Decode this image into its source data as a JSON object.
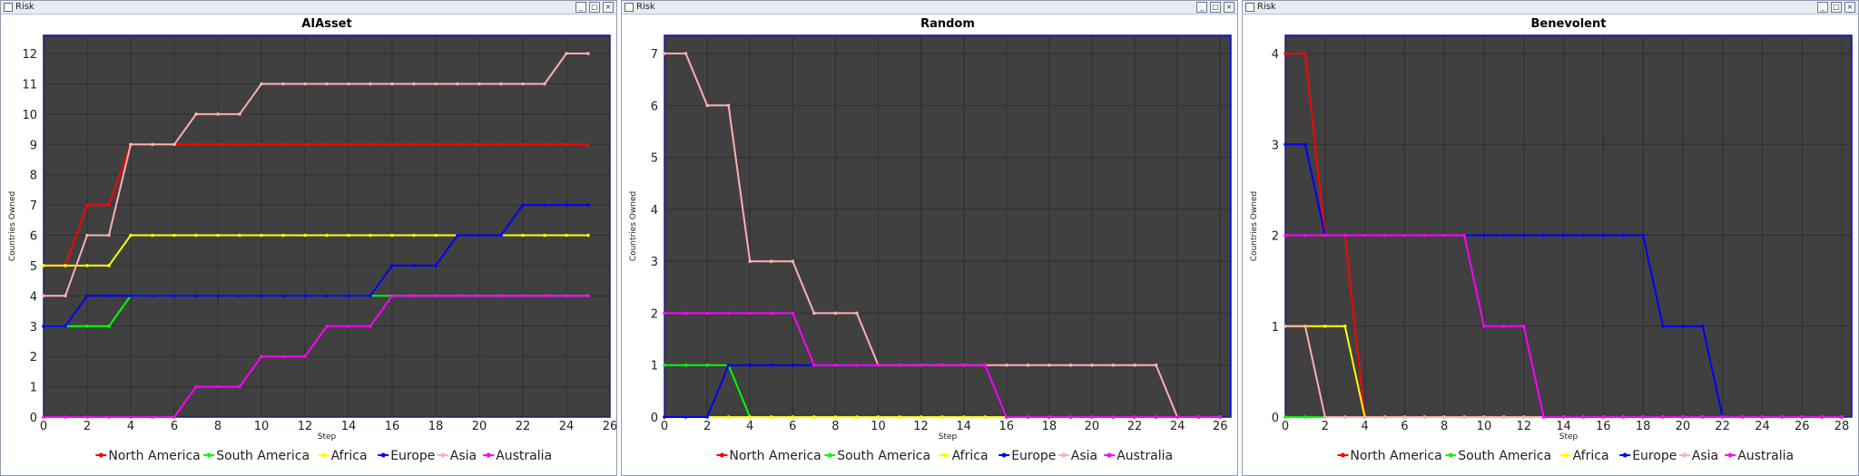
{
  "windows": [
    {
      "title": "Risk",
      "controls": [
        "minimize-icon",
        "restore-icon",
        "close-icon"
      ]
    },
    {
      "title": "Risk",
      "controls": [
        "minimize-icon",
        "restore-icon",
        "close-icon"
      ]
    },
    {
      "title": "Risk",
      "controls": [
        "minimize-icon",
        "restore-icon",
        "close-icon"
      ]
    }
  ],
  "chart_data": [
    {
      "type": "line",
      "title": "AIAsset",
      "xlabel": "Step",
      "ylabel": "Countries Owned",
      "xlim": [
        0,
        26
      ],
      "ylim": [
        0,
        12.6
      ],
      "xticks": [
        0,
        2,
        4,
        6,
        8,
        10,
        12,
        14,
        16,
        18,
        20,
        22,
        24,
        26
      ],
      "yticks": [
        0,
        1,
        2,
        3,
        4,
        5,
        6,
        7,
        8,
        9,
        10,
        11,
        12
      ],
      "grid": true,
      "legend": "bottom",
      "x": [
        0,
        1,
        2,
        3,
        4,
        5,
        6,
        7,
        8,
        9,
        10,
        11,
        12,
        13,
        14,
        15,
        16,
        17,
        18,
        19,
        20,
        21,
        22,
        23,
        24,
        25
      ],
      "series": [
        {
          "name": "North America",
          "color": "#ff0000",
          "values": [
            5,
            5,
            7,
            7,
            9,
            9,
            9,
            9,
            9,
            9,
            9,
            9,
            9,
            9,
            9,
            9,
            9,
            9,
            9,
            9,
            9,
            9,
            9,
            9,
            9,
            9
          ]
        },
        {
          "name": "South  America",
          "color": "#00ff00",
          "values": [
            3,
            3,
            3,
            3,
            4,
            4,
            4,
            4,
            4,
            4,
            4,
            4,
            4,
            4,
            4,
            4,
            4,
            4,
            4,
            4,
            4,
            4,
            4,
            4,
            4,
            4
          ]
        },
        {
          "name": "Africa",
          "color": "#ffff00",
          "values": [
            5,
            5,
            5,
            5,
            6,
            6,
            6,
            6,
            6,
            6,
            6,
            6,
            6,
            6,
            6,
            6,
            6,
            6,
            6,
            6,
            6,
            6,
            6,
            6,
            6,
            6
          ]
        },
        {
          "name": "Europe",
          "color": "#0000ff",
          "values": [
            3,
            3,
            4,
            4,
            4,
            4,
            4,
            4,
            4,
            4,
            4,
            4,
            4,
            4,
            4,
            4,
            5,
            5,
            5,
            6,
            6,
            6,
            7,
            7,
            7,
            7
          ]
        },
        {
          "name": "Asia",
          "color": "#ffafaf",
          "values": [
            4,
            4,
            6,
            6,
            9,
            9,
            9,
            10,
            10,
            10,
            11,
            11,
            11,
            11,
            11,
            11,
            11,
            11,
            11,
            11,
            11,
            11,
            11,
            11,
            12,
            12
          ]
        },
        {
          "name": "Australia",
          "color": "#ff00ff",
          "values": [
            0,
            0,
            0,
            0,
            0,
            0,
            0,
            1,
            1,
            1,
            2,
            2,
            2,
            3,
            3,
            3,
            4,
            4,
            4,
            4,
            4,
            4,
            4,
            4,
            4,
            4
          ]
        }
      ]
    },
    {
      "type": "line",
      "title": "Random",
      "xlabel": "Step",
      "ylabel": "Countries Owned",
      "xlim": [
        0,
        26.5
      ],
      "ylim": [
        0,
        7.35
      ],
      "xticks": [
        0,
        2,
        4,
        6,
        8,
        10,
        12,
        14,
        16,
        18,
        20,
        22,
        24,
        26
      ],
      "yticks": [
        0,
        1,
        2,
        3,
        4,
        5,
        6,
        7
      ],
      "grid": true,
      "legend": "bottom",
      "x": [
        0,
        1,
        2,
        3,
        4,
        5,
        6,
        7,
        8,
        9,
        10,
        11,
        12,
        13,
        14,
        15,
        16,
        17,
        18,
        19,
        20,
        21,
        22,
        23,
        24,
        25,
        26
      ],
      "series": [
        {
          "name": "North America",
          "color": "#ff0000",
          "values": [
            0,
            0,
            0,
            0,
            0,
            0,
            0,
            0,
            0,
            0,
            0,
            0,
            0,
            0,
            0,
            0,
            0,
            0,
            0,
            0,
            0,
            0,
            0,
            0,
            0,
            0,
            0
          ]
        },
        {
          "name": "South  America",
          "color": "#00ff00",
          "values": [
            1,
            1,
            1,
            1,
            0,
            0,
            0,
            0,
            0,
            0,
            0,
            0,
            0,
            0,
            0,
            0,
            0,
            0,
            0,
            0,
            0,
            0,
            0,
            0,
            0,
            0,
            0
          ]
        },
        {
          "name": "Africa",
          "color": "#ffff00",
          "values": [
            0,
            0,
            0,
            0,
            0,
            0,
            0,
            0,
            0,
            0,
            0,
            0,
            0,
            0,
            0,
            0,
            0,
            0,
            0,
            0,
            0,
            0,
            0,
            0,
            0,
            0,
            0
          ]
        },
        {
          "name": "Europe",
          "color": "#0000ff",
          "values": [
            0,
            0,
            0,
            1,
            1,
            1,
            1,
            1,
            1,
            1,
            1,
            1,
            1,
            1,
            1,
            1,
            0,
            0,
            0,
            0,
            0,
            0,
            0,
            0,
            0,
            0,
            0
          ]
        },
        {
          "name": "Asia",
          "color": "#ffafaf",
          "values": [
            7,
            7,
            6,
            6,
            3,
            3,
            3,
            2,
            2,
            2,
            1,
            1,
            1,
            1,
            1,
            1,
            1,
            1,
            1,
            1,
            1,
            1,
            1,
            1,
            0,
            0,
            0
          ]
        },
        {
          "name": "Australia",
          "color": "#ff00ff",
          "values": [
            2,
            2,
            2,
            2,
            2,
            2,
            2,
            1,
            1,
            1,
            1,
            1,
            1,
            1,
            1,
            1,
            0,
            0,
            0,
            0,
            0,
            0,
            0,
            0,
            0,
            0,
            0
          ]
        }
      ]
    },
    {
      "type": "line",
      "title": "Benevolent",
      "xlabel": "Step",
      "ylabel": "Countries Owned",
      "xlim": [
        0,
        28.5
      ],
      "ylim": [
        0,
        4.2
      ],
      "xticks": [
        0,
        2,
        4,
        6,
        8,
        10,
        12,
        14,
        16,
        18,
        20,
        22,
        24,
        26,
        28
      ],
      "yticks": [
        0,
        1,
        2,
        3,
        4
      ],
      "grid": true,
      "legend": "bottom",
      "x": [
        0,
        1,
        2,
        3,
        4,
        5,
        6,
        7,
        8,
        9,
        10,
        11,
        12,
        13,
        14,
        15,
        16,
        17,
        18,
        19,
        20,
        21,
        22,
        23,
        24,
        25,
        26,
        27,
        28
      ],
      "series": [
        {
          "name": "North America",
          "color": "#ff0000",
          "values": [
            4,
            4,
            2,
            2,
            0,
            0,
            0,
            0,
            0,
            0,
            0,
            0,
            0,
            0,
            0,
            0,
            0,
            0,
            0,
            0,
            0,
            0,
            0,
            0,
            0,
            0,
            0,
            0,
            0
          ]
        },
        {
          "name": "South  America",
          "color": "#00ff00",
          "values": [
            0,
            0,
            0,
            0,
            0,
            0,
            0,
            0,
            0,
            0,
            0,
            0,
            0,
            0,
            0,
            0,
            0,
            0,
            0,
            0,
            0,
            0,
            0,
            0,
            0,
            0,
            0,
            0,
            0
          ]
        },
        {
          "name": "Africa",
          "color": "#ffff00",
          "values": [
            1,
            1,
            1,
            1,
            0,
            0,
            0,
            0,
            0,
            0,
            0,
            0,
            0,
            0,
            0,
            0,
            0,
            0,
            0,
            0,
            0,
            0,
            0,
            0,
            0,
            0,
            0,
            0,
            0
          ]
        },
        {
          "name": "Europe",
          "color": "#0000ff",
          "values": [
            3,
            3,
            2,
            2,
            2,
            2,
            2,
            2,
            2,
            2,
            2,
            2,
            2,
            2,
            2,
            2,
            2,
            2,
            2,
            1,
            1,
            1,
            0,
            0,
            0,
            0,
            0,
            0,
            0
          ]
        },
        {
          "name": "Asia",
          "color": "#ffafaf",
          "values": [
            1,
            1,
            0,
            0,
            0,
            0,
            0,
            0,
            0,
            0,
            0,
            0,
            0,
            0,
            0,
            0,
            0,
            0,
            0,
            0,
            0,
            0,
            0,
            0,
            0,
            0,
            0,
            0,
            0
          ]
        },
        {
          "name": "Australia",
          "color": "#ff00ff",
          "values": [
            2,
            2,
            2,
            2,
            2,
            2,
            2,
            2,
            2,
            2,
            1,
            1,
            1,
            0,
            0,
            0,
            0,
            0,
            0,
            0,
            0,
            0,
            0,
            0,
            0,
            0,
            0,
            0,
            0
          ]
        }
      ]
    }
  ]
}
